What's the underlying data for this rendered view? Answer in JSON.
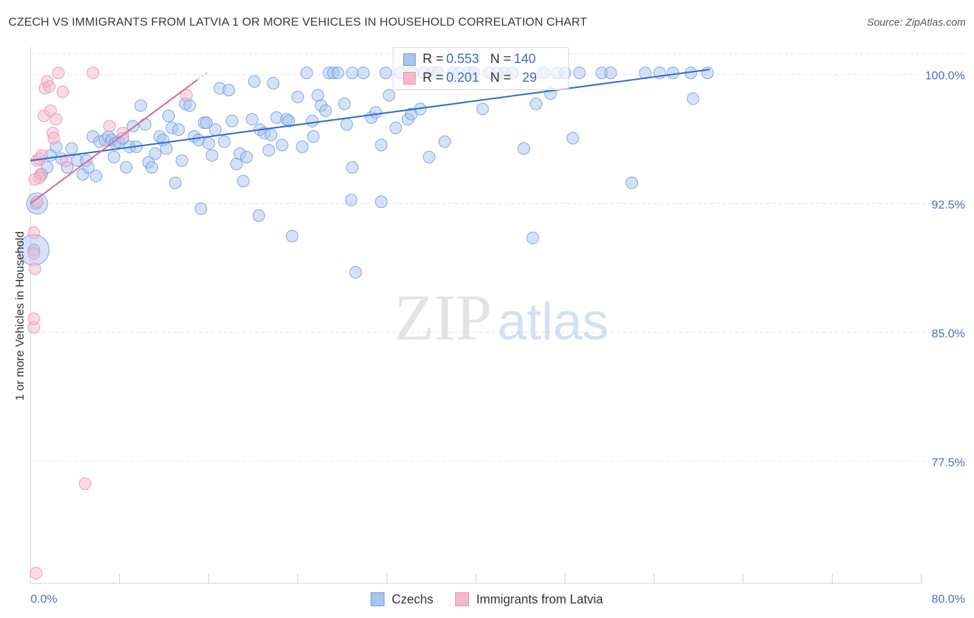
{
  "title": "CZECH VS IMMIGRANTS FROM LATVIA 1 OR MORE VEHICLES IN HOUSEHOLD CORRELATION CHART",
  "source": "Source: ZipAtlas.com",
  "watermark": {
    "zip": "ZIP",
    "atlas": "atlas"
  },
  "colors": {
    "blue_fill": "#a9c4ee",
    "blue_stroke": "#6b98dd",
    "blue_line": "#2f6fd6",
    "pink_fill": "#f6b8cb",
    "pink_stroke": "#ea8fab",
    "pink_line": "#e06a95",
    "grid": "#dde2ea",
    "tick_text": "#4a72c4"
  },
  "stats": [
    {
      "r_label": "R =",
      "r_value": "0.553",
      "n_label": "N =",
      "n_value": "140",
      "series": "czechs"
    },
    {
      "r_label": "R =",
      "r_value": "0.201",
      "n_label": "N =",
      "n_value": "29",
      "series": "latvia"
    }
  ],
  "chart_data": {
    "type": "scatter",
    "xlabel": "",
    "ylabel": "1 or more Vehicles in Household",
    "xlim": [
      0,
      80
    ],
    "ylim": [
      70.4,
      101.6
    ],
    "x_tick_labels": [
      "0.0%",
      "80.0%"
    ],
    "y_ticks": [
      {
        "value": 100.0,
        "label": "100.0%"
      },
      {
        "value": 92.5,
        "label": "92.5%"
      },
      {
        "value": 85.0,
        "label": "85.0%"
      },
      {
        "value": 77.5,
        "label": "77.5%"
      }
    ],
    "legend": [
      "Czechs",
      "Immigrants from Latvia"
    ],
    "series": [
      {
        "name": "Czechs",
        "key": "czechs",
        "trend": {
          "x": [
            0,
            61
          ],
          "y": [
            95.0,
            100.3
          ]
        },
        "points": [
          [
            0.3,
            89.8,
            1.0
          ],
          [
            0.5,
            92.5,
            1.0
          ],
          [
            1.0,
            94.2,
            1.0
          ],
          [
            1.5,
            94.6,
            1.0
          ],
          [
            1.8,
            95.3,
            1.0
          ],
          [
            2.3,
            95.8,
            1.0
          ],
          [
            2.8,
            95.1,
            1.0
          ],
          [
            3.3,
            94.6,
            1.0
          ],
          [
            3.7,
            95.7,
            1.0
          ],
          [
            4.2,
            95.0,
            1.0
          ],
          [
            4.7,
            94.2,
            1.0
          ],
          [
            5.0,
            95.0,
            1.0
          ],
          [
            5.2,
            94.6,
            1.0
          ],
          [
            5.6,
            96.4,
            1.0
          ],
          [
            5.9,
            94.1,
            1.0
          ],
          [
            6.2,
            96.1,
            1.0
          ],
          [
            6.7,
            96.2,
            1.0
          ],
          [
            7.0,
            96.4,
            1.0
          ],
          [
            7.3,
            96.2,
            1.0
          ],
          [
            7.6,
            96.0,
            1.0
          ],
          [
            7.5,
            95.2,
            1.0
          ],
          [
            7.9,
            96.1,
            1.0
          ],
          [
            8.3,
            96.3,
            1.0
          ],
          [
            8.6,
            94.6,
            1.0
          ],
          [
            8.9,
            95.8,
            1.0
          ],
          [
            9.2,
            97.0,
            1.0
          ],
          [
            9.5,
            95.8,
            1.0
          ],
          [
            9.9,
            98.2,
            1.0
          ],
          [
            10.3,
            97.1,
            1.0
          ],
          [
            10.6,
            94.9,
            1.0
          ],
          [
            10.9,
            94.6,
            1.0
          ],
          [
            11.2,
            95.4,
            1.0
          ],
          [
            11.6,
            96.4,
            1.0
          ],
          [
            11.9,
            96.2,
            1.0
          ],
          [
            12.2,
            95.7,
            1.0
          ],
          [
            12.4,
            97.6,
            1.0
          ],
          [
            12.7,
            96.9,
            1.0
          ],
          [
            13.0,
            93.7,
            1.0
          ],
          [
            13.3,
            96.8,
            1.0
          ],
          [
            13.6,
            95.0,
            1.0
          ],
          [
            13.9,
            98.3,
            1.0
          ],
          [
            14.3,
            98.2,
            1.0
          ],
          [
            14.7,
            96.4,
            1.0
          ],
          [
            15.1,
            96.2,
            1.0
          ],
          [
            15.3,
            92.2,
            1.0
          ],
          [
            15.6,
            97.2,
            1.0
          ],
          [
            15.8,
            97.2,
            1.0
          ],
          [
            16.0,
            96.0,
            1.0
          ],
          [
            16.3,
            95.3,
            1.0
          ],
          [
            16.6,
            96.8,
            1.0
          ],
          [
            17.0,
            99.2,
            1.0
          ],
          [
            17.4,
            96.1,
            1.0
          ],
          [
            17.8,
            99.1,
            1.0
          ],
          [
            18.1,
            97.3,
            1.0
          ],
          [
            18.5,
            94.8,
            1.0
          ],
          [
            18.8,
            95.4,
            1.0
          ],
          [
            19.1,
            93.8,
            1.0
          ],
          [
            19.4,
            95.2,
            1.0
          ],
          [
            19.9,
            97.4,
            1.0
          ],
          [
            20.5,
            91.8,
            1.0
          ],
          [
            20.1,
            99.6,
            1.0
          ],
          [
            20.6,
            96.8,
            1.0
          ],
          [
            21.0,
            96.6,
            1.0
          ],
          [
            21.4,
            95.6,
            1.0
          ],
          [
            21.6,
            96.5,
            1.0
          ],
          [
            21.8,
            99.5,
            1.0
          ],
          [
            22.1,
            97.5,
            1.0
          ],
          [
            22.6,
            95.9,
            1.0
          ],
          [
            23.0,
            97.4,
            1.0
          ],
          [
            23.2,
            97.3,
            1.0
          ],
          [
            23.5,
            90.6,
            1.0
          ],
          [
            24.0,
            98.7,
            1.0
          ],
          [
            24.4,
            95.8,
            1.0
          ],
          [
            24.8,
            100.1,
            1.0
          ],
          [
            25.4,
            96.4,
            1.0
          ],
          [
            25.3,
            97.3,
            1.0
          ],
          [
            25.8,
            98.8,
            1.0
          ],
          [
            26.1,
            98.2,
            1.0
          ],
          [
            26.5,
            97.9,
            1.0
          ],
          [
            26.8,
            100.1,
            1.0
          ],
          [
            27.2,
            100.1,
            1.0
          ],
          [
            27.6,
            100.1,
            1.0
          ],
          [
            28.2,
            98.3,
            1.0
          ],
          [
            28.4,
            97.1,
            1.0
          ],
          [
            28.9,
            100.1,
            1.0
          ],
          [
            28.9,
            94.6,
            1.0
          ],
          [
            28.8,
            92.7,
            1.0
          ],
          [
            29.2,
            88.5,
            1.0
          ],
          [
            29.9,
            100.1,
            1.0
          ],
          [
            30.6,
            97.5,
            1.0
          ],
          [
            31.0,
            97.8,
            1.0
          ],
          [
            31.5,
            95.9,
            1.0
          ],
          [
            31.9,
            100.1,
            1.0
          ],
          [
            31.5,
            92.6,
            1.0
          ],
          [
            32.2,
            98.8,
            1.0
          ],
          [
            32.8,
            96.9,
            1.0
          ],
          [
            33.2,
            100.1,
            1.0
          ],
          [
            33.9,
            97.4,
            1.0
          ],
          [
            34.2,
            97.7,
            1.0
          ],
          [
            34.3,
            100.1,
            1.0
          ],
          [
            35.0,
            98.0,
            1.0
          ],
          [
            35.3,
            100.1,
            1.0
          ],
          [
            35.8,
            95.2,
            1.0
          ],
          [
            36.1,
            100.1,
            1.0
          ],
          [
            36.6,
            100.1,
            1.0
          ],
          [
            37.2,
            96.1,
            1.0
          ],
          [
            38.0,
            100.1,
            1.0
          ],
          [
            38.5,
            100.1,
            1.0
          ],
          [
            39.3,
            100.1,
            1.0
          ],
          [
            39.8,
            100.1,
            1.0
          ],
          [
            40.6,
            98.0,
            1.0
          ],
          [
            41.2,
            100.1,
            1.0
          ],
          [
            41.9,
            100.1,
            1.0
          ],
          [
            42.6,
            100.1,
            1.0
          ],
          [
            43.3,
            100.1,
            1.0
          ],
          [
            44.3,
            95.7,
            1.0
          ],
          [
            45.1,
            90.5,
            1.0
          ],
          [
            45.4,
            98.3,
            1.0
          ],
          [
            46.1,
            100.1,
            1.0
          ],
          [
            46.7,
            98.9,
            1.0
          ],
          [
            47.3,
            100.1,
            1.0
          ],
          [
            48.0,
            100.1,
            1.0
          ],
          [
            48.7,
            96.3,
            1.0
          ],
          [
            49.3,
            100.1,
            1.0
          ],
          [
            51.3,
            100.1,
            1.0
          ],
          [
            52.1,
            100.1,
            1.0
          ],
          [
            54.0,
            93.7,
            1.0
          ],
          [
            55.2,
            100.1,
            1.0
          ],
          [
            56.5,
            100.1,
            1.0
          ],
          [
            57.7,
            100.1,
            1.0
          ],
          [
            59.3,
            100.1,
            1.0
          ],
          [
            60.8,
            100.1,
            1.0
          ],
          [
            59.5,
            98.6,
            1.0
          ],
          [
            0.6,
            92.5,
            1.8
          ],
          [
            0.3,
            89.8,
            2.6
          ]
        ]
      },
      {
        "name": "Immigrants from Latvia",
        "key": "latvia",
        "trend": {
          "x": [
            0,
            15
          ],
          "y": [
            92.5,
            99.7
          ]
        },
        "trend_dash": {
          "x": [
            15,
            16
          ],
          "y": [
            99.7,
            100.2
          ]
        },
        "points": [
          [
            0.3,
            89.6,
            1.0
          ],
          [
            0.3,
            90.8,
            1.0
          ],
          [
            0.3,
            85.3,
            1.0
          ],
          [
            0.3,
            85.8,
            1.0
          ],
          [
            0.4,
            88.7,
            1.0
          ],
          [
            0.6,
            95.0,
            1.0
          ],
          [
            0.8,
            95.1,
            1.0
          ],
          [
            0.9,
            94.2,
            1.0
          ],
          [
            1.0,
            95.3,
            1.0
          ],
          [
            1.2,
            97.6,
            1.0
          ],
          [
            1.3,
            99.2,
            1.0
          ],
          [
            1.5,
            99.6,
            1.0
          ],
          [
            1.7,
            99.3,
            1.0
          ],
          [
            1.8,
            97.9,
            1.0
          ],
          [
            2.0,
            96.6,
            1.0
          ],
          [
            2.1,
            96.3,
            1.0
          ],
          [
            2.3,
            97.4,
            1.0
          ],
          [
            2.5,
            100.1,
            1.0
          ],
          [
            2.9,
            99.0,
            1.0
          ],
          [
            3.2,
            95.0,
            1.0
          ],
          [
            4.9,
            76.2,
            1.0
          ],
          [
            5.6,
            100.1,
            1.0
          ],
          [
            7.1,
            97.0,
            1.0
          ],
          [
            8.3,
            96.6,
            1.0
          ],
          [
            0.5,
            71.0,
            1.0
          ],
          [
            0.8,
            94.0,
            1.0
          ],
          [
            14.0,
            98.8,
            1.0
          ],
          [
            0.4,
            93.9,
            1.0
          ],
          [
            0.6,
            92.6,
            1.0
          ]
        ]
      }
    ]
  }
}
